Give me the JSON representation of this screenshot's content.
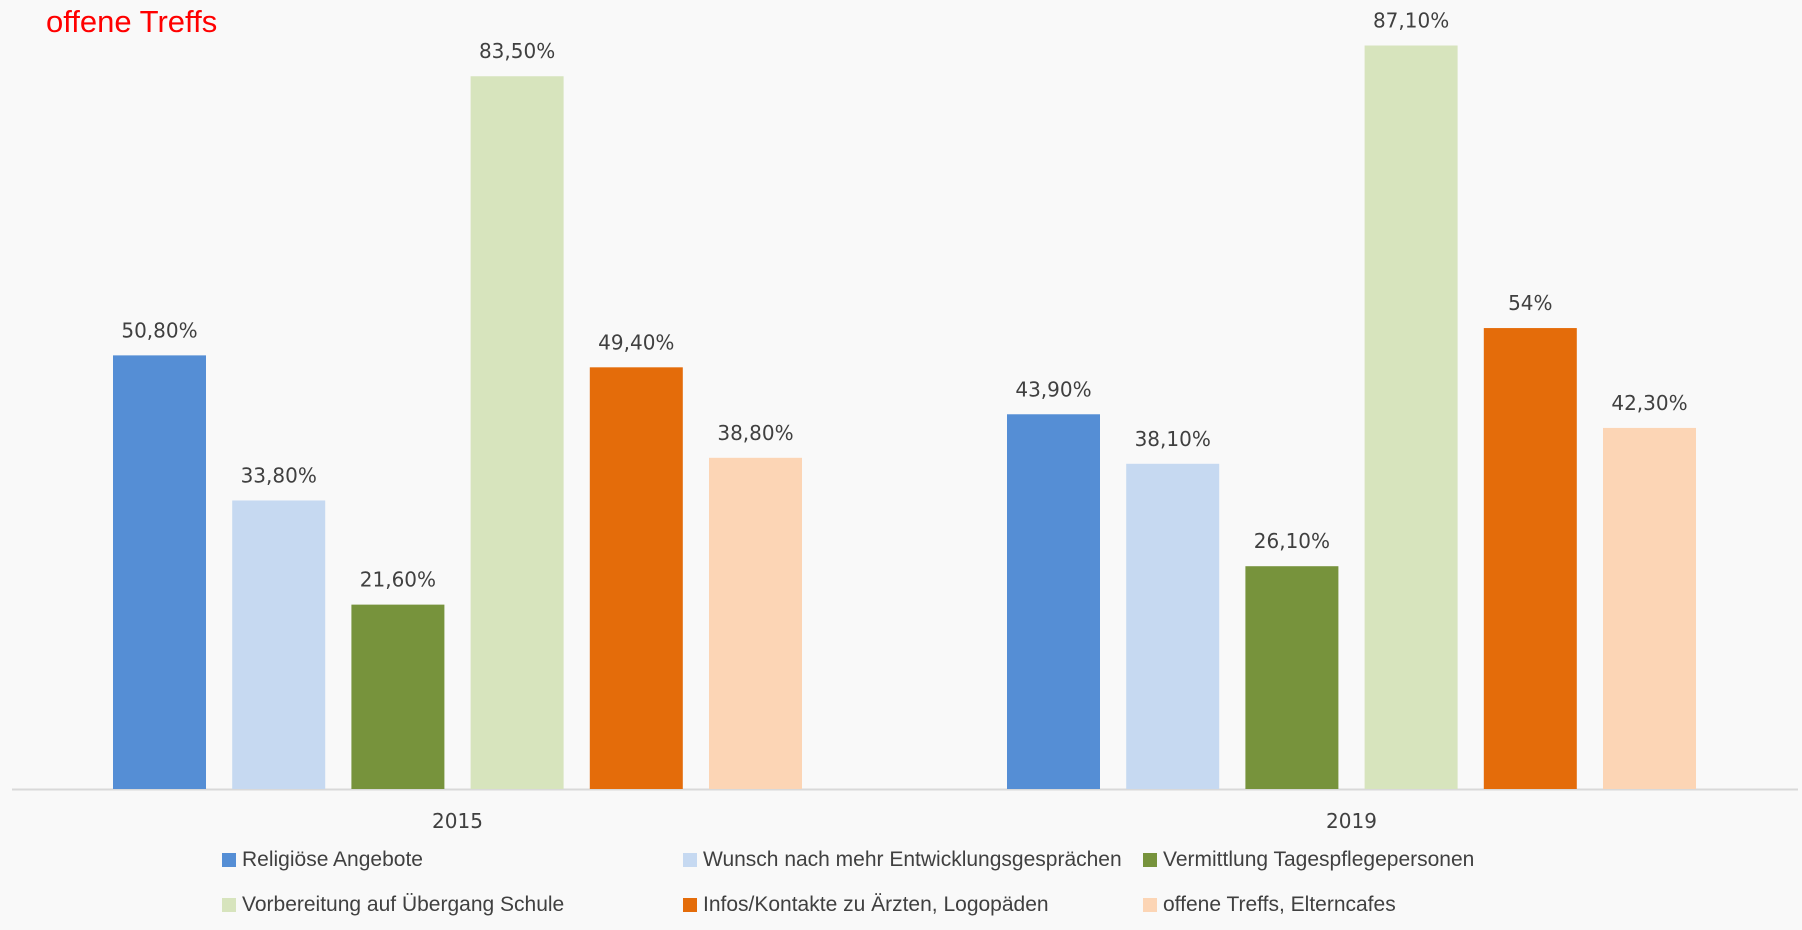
{
  "title_fragment": "offene Treffs",
  "chart_data": {
    "type": "bar",
    "categories": [
      "2015",
      "2019"
    ],
    "ylim": [
      0,
      100
    ],
    "series": [
      {
        "name": "Religiöse Angebote",
        "color": "#558ed5",
        "values": [
          50.8,
          43.9
        ],
        "labels": [
          "50,80%",
          "43,90%"
        ]
      },
      {
        "name": "Wunsch nach mehr Entwicklungsgesprächen",
        "color": "#c6d9f1",
        "values": [
          33.8,
          38.1
        ],
        "labels": [
          "33,80%",
          "38,10%"
        ]
      },
      {
        "name": "Vermittlung Tagespflegepersonen",
        "color": "#77933c",
        "values": [
          21.6,
          26.1
        ],
        "labels": [
          "21,60%",
          "26,10%"
        ]
      },
      {
        "name": "Vorbereitung auf Übergang Schule",
        "color": "#d7e4bd",
        "values": [
          83.5,
          87.1
        ],
        "labels": [
          "83,50%",
          "87,10%"
        ]
      },
      {
        "name": "Infos/Kontakte zu Ärzten, Logopäden",
        "color": "#e46c0a",
        "values": [
          49.4,
          54.0
        ],
        "labels": [
          "49,40%",
          "54%"
        ]
      },
      {
        "name": "offene Treffs, Elterncafes",
        "color": "#fcd5b5",
        "values": [
          38.8,
          42.3
        ],
        "labels": [
          "38,80%",
          "42,30%"
        ]
      }
    ],
    "legend_position": "bottom",
    "grid": false
  }
}
